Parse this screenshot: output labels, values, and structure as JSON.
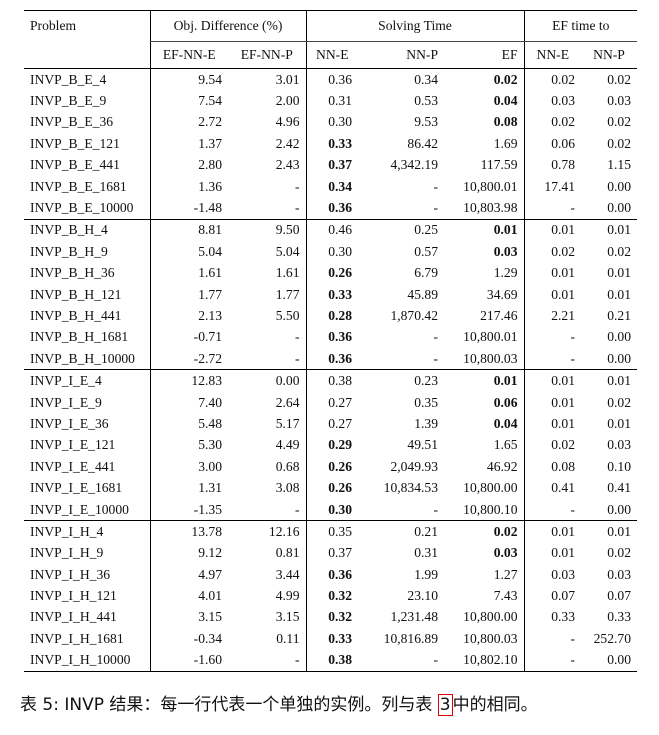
{
  "table": {
    "header": {
      "problem": "Problem",
      "obj_diff": "Obj. Difference (%)",
      "solving_time": "Solving Time",
      "ef_time_to": "EF time to",
      "sub": [
        "EF-NN-E",
        "EF-NN-P",
        "NN-E",
        "NN-P",
        "EF",
        "NN-E",
        "NN-P"
      ]
    },
    "rows": [
      [
        "INVP_B_E_4",
        "9.54",
        "3.01",
        "0.36",
        "0.34",
        "0.02",
        "0.02",
        "0.02"
      ],
      [
        "INVP_B_E_9",
        "7.54",
        "2.00",
        "0.31",
        "0.53",
        "0.04",
        "0.03",
        "0.03"
      ],
      [
        "INVP_B_E_36",
        "2.72",
        "4.96",
        "0.30",
        "9.53",
        "0.08",
        "0.02",
        "0.02"
      ],
      [
        "INVP_B_E_121",
        "1.37",
        "2.42",
        "0.33",
        "86.42",
        "1.69",
        "0.06",
        "0.02"
      ],
      [
        "INVP_B_E_441",
        "2.80",
        "2.43",
        "0.37",
        "4,342.19",
        "117.59",
        "0.78",
        "1.15"
      ],
      [
        "INVP_B_E_1681",
        "1.36",
        "-",
        "0.34",
        "-",
        "10,800.01",
        "17.41",
        "0.00"
      ],
      [
        "INVP_B_E_10000",
        "-1.48",
        "-",
        "0.36",
        "-",
        "10,803.98",
        "-",
        "0.00"
      ],
      [
        "INVP_B_H_4",
        "8.81",
        "9.50",
        "0.46",
        "0.25",
        "0.01",
        "0.01",
        "0.01"
      ],
      [
        "INVP_B_H_9",
        "5.04",
        "5.04",
        "0.30",
        "0.57",
        "0.03",
        "0.02",
        "0.02"
      ],
      [
        "INVP_B_H_36",
        "1.61",
        "1.61",
        "0.26",
        "6.79",
        "1.29",
        "0.01",
        "0.01"
      ],
      [
        "INVP_B_H_121",
        "1.77",
        "1.77",
        "0.33",
        "45.89",
        "34.69",
        "0.01",
        "0.01"
      ],
      [
        "INVP_B_H_441",
        "2.13",
        "5.50",
        "0.28",
        "1,870.42",
        "217.46",
        "2.21",
        "0.21"
      ],
      [
        "INVP_B_H_1681",
        "-0.71",
        "-",
        "0.36",
        "-",
        "10,800.01",
        "-",
        "0.00"
      ],
      [
        "INVP_B_H_10000",
        "-2.72",
        "-",
        "0.36",
        "-",
        "10,800.03",
        "-",
        "0.00"
      ],
      [
        "INVP_I_E_4",
        "12.83",
        "0.00",
        "0.38",
        "0.23",
        "0.01",
        "0.01",
        "0.01"
      ],
      [
        "INVP_I_E_9",
        "7.40",
        "2.64",
        "0.27",
        "0.35",
        "0.06",
        "0.01",
        "0.02"
      ],
      [
        "INVP_I_E_36",
        "5.48",
        "5.17",
        "0.27",
        "1.39",
        "0.04",
        "0.01",
        "0.01"
      ],
      [
        "INVP_I_E_121",
        "5.30",
        "4.49",
        "0.29",
        "49.51",
        "1.65",
        "0.02",
        "0.03"
      ],
      [
        "INVP_I_E_441",
        "3.00",
        "0.68",
        "0.26",
        "2,049.93",
        "46.92",
        "0.08",
        "0.10"
      ],
      [
        "INVP_I_E_1681",
        "1.31",
        "3.08",
        "0.26",
        "10,834.53",
        "10,800.00",
        "0.41",
        "0.41"
      ],
      [
        "INVP_I_E_10000",
        "-1.35",
        "-",
        "0.30",
        "-",
        "10,800.10",
        "-",
        "0.00"
      ],
      [
        "INVP_I_H_4",
        "13.78",
        "12.16",
        "0.35",
        "0.21",
        "0.02",
        "0.01",
        "0.01"
      ],
      [
        "INVP_I_H_9",
        "9.12",
        "0.81",
        "0.37",
        "0.31",
        "0.03",
        "0.01",
        "0.02"
      ],
      [
        "INVP_I_H_36",
        "4.97",
        "3.44",
        "0.36",
        "1.99",
        "1.27",
        "0.03",
        "0.03"
      ],
      [
        "INVP_I_H_121",
        "4.01",
        "4.99",
        "0.32",
        "23.10",
        "7.43",
        "0.07",
        "0.07"
      ],
      [
        "INVP_I_H_441",
        "3.15",
        "3.15",
        "0.32",
        "1,231.48",
        "10,800.00",
        "0.33",
        "0.33"
      ],
      [
        "INVP_I_H_1681",
        "-0.34",
        "0.11",
        "0.33",
        "10,816.89",
        "10,800.03",
        "-",
        "252.70"
      ],
      [
        "INVP_I_H_10000",
        "-1.60",
        "-",
        "0.38",
        "-",
        "10,802.10",
        "-",
        "0.00"
      ]
    ],
    "bold_col": [
      5,
      5,
      5,
      3,
      3,
      3,
      3,
      5,
      5,
      3,
      3,
      3,
      3,
      3,
      5,
      5,
      5,
      3,
      3,
      3,
      3,
      5,
      5,
      3,
      3,
      3,
      3,
      3
    ],
    "group_starts": [
      7,
      14,
      21
    ]
  },
  "caption": {
    "prefix": "表 5:  INVP 结果：每一行代表一个单独的实例。列与表 ",
    "ref": "3",
    "suffix": "中的相同。"
  }
}
